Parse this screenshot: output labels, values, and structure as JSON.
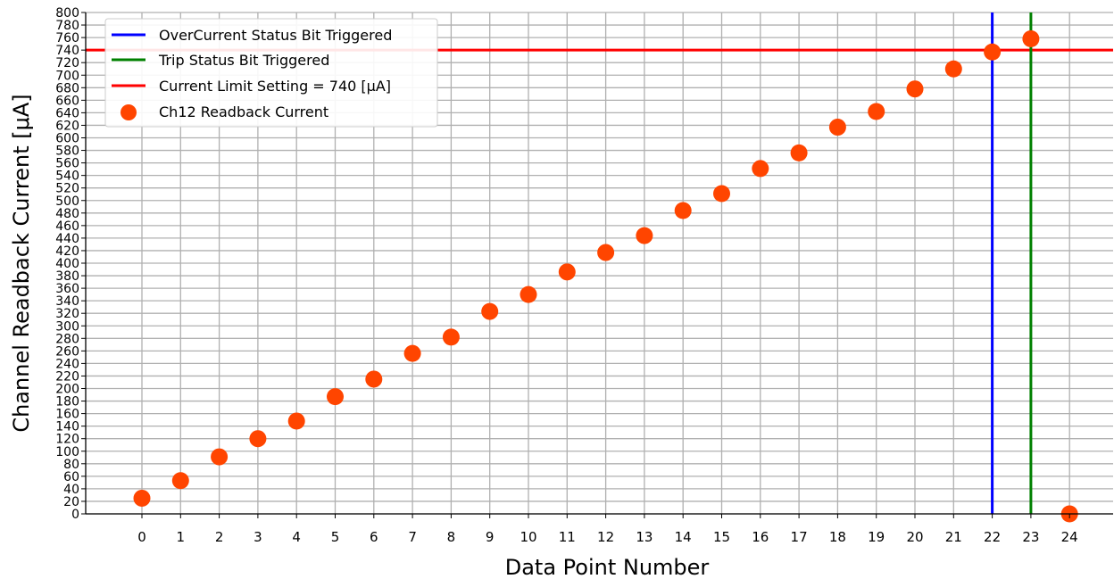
{
  "chart_data": {
    "type": "scatter",
    "title": "",
    "xlabel": "Data Point Number",
    "ylabel": "Channel Readback Current [μA]",
    "xlim": [
      -1,
      25
    ],
    "ylim": [
      0,
      800
    ],
    "x_ticks": [
      "0",
      "1",
      "2",
      "3",
      "4",
      "5",
      "6",
      "7",
      "8",
      "9",
      "10",
      "11",
      "12",
      "13",
      "14",
      "15",
      "16",
      "17",
      "18",
      "19",
      "20",
      "21",
      "22",
      "23",
      "24"
    ],
    "y_ticks": [
      "0",
      "20",
      "40",
      "60",
      "80",
      "100",
      "120",
      "140",
      "160",
      "180",
      "200",
      "220",
      "240",
      "260",
      "280",
      "300",
      "320",
      "340",
      "360",
      "380",
      "400",
      "420",
      "440",
      "460",
      "480",
      "500",
      "520",
      "540",
      "560",
      "580",
      "600",
      "620",
      "640",
      "660",
      "680",
      "700",
      "720",
      "740",
      "760",
      "780",
      "800"
    ],
    "grid": true,
    "legend_placement": "top-left",
    "series": [
      {
        "name": "Ch12 Readback Current",
        "color": "#ff4500",
        "x": [
          0,
          1,
          2,
          3,
          4,
          5,
          6,
          7,
          8,
          9,
          10,
          11,
          12,
          13,
          14,
          15,
          16,
          17,
          18,
          19,
          20,
          21,
          22,
          23,
          24
        ],
        "y": [
          25,
          53,
          91,
          120,
          148,
          187,
          215,
          256,
          282,
          323,
          350,
          386,
          417,
          444,
          484,
          511,
          551,
          576,
          617,
          642,
          678,
          710,
          737,
          758,
          0
        ]
      }
    ],
    "vlines": [
      {
        "name": "OverCurrent Status Bit Triggered",
        "x": 22,
        "color": "#0000ff"
      },
      {
        "name": "Trip Status Bit Triggered",
        "x": 23,
        "color": "#008000"
      }
    ],
    "hlines": [
      {
        "name": "Current Limit Setting = 740 [μA]",
        "y": 740,
        "color": "#ff0000"
      }
    ]
  }
}
